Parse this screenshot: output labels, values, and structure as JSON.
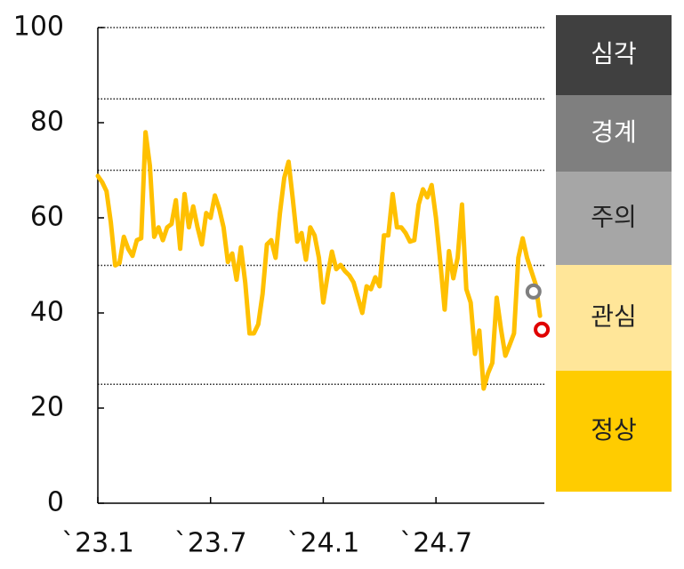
{
  "chart_data": {
    "type": "line",
    "xlim": [
      0,
      103
    ],
    "xticks": [
      {
        "value": 0,
        "label": "`23.1"
      },
      {
        "value": 26,
        "label": "`23.7"
      },
      {
        "value": 52,
        "label": "`24.1"
      },
      {
        "value": 78,
        "label": "`24.7"
      }
    ],
    "ylim": [
      0,
      100
    ],
    "yticks": [
      0,
      20,
      40,
      60,
      80,
      100
    ],
    "series": [
      {
        "color": "#ffc000",
        "values": [
          68.8,
          67.5,
          65.6,
          59,
          50,
          50.5,
          56,
          53.5,
          52,
          55.3,
          55.7,
          78,
          71,
          56,
          58,
          55.3,
          58,
          58.7,
          63.7,
          53.5,
          65,
          58,
          62.4,
          58,
          54.4,
          61,
          60,
          64.7,
          61.9,
          58,
          50.7,
          52.5,
          47,
          53.8,
          46.4,
          35.7,
          35.7,
          37.6,
          44,
          54.4,
          55.3,
          51.6,
          61,
          68.4,
          71.8,
          63.7,
          55,
          56.8,
          51.2,
          58,
          56.3,
          51.6,
          42.2,
          47.9,
          52.9,
          49.2,
          50.1,
          48.8,
          47.9,
          46.4,
          43.2,
          40,
          45.6,
          45,
          47.5,
          45.6,
          56.3,
          56.3,
          65,
          58,
          58,
          56.8,
          55,
          55.3,
          62.8,
          66,
          64.3,
          66.9,
          60,
          50.7,
          40.7,
          53,
          47.3,
          51.6,
          62.8,
          45,
          42.2,
          31.4,
          36.3,
          24.1,
          27.3,
          29.5,
          43.2,
          36.6,
          31,
          33.3,
          35.7,
          51.6,
          55.7,
          51.6,
          48.8,
          46,
          39.4
        ]
      }
    ],
    "markers": [
      {
        "x": 100.5,
        "value": 44.5,
        "color": "#7f7f7f"
      },
      {
        "x": 102.4,
        "value": 36.5,
        "color": "#e00000"
      }
    ],
    "bands": [
      {
        "label": "심각",
        "to": 100,
        "color": "#404040",
        "text_color": "#ffffff"
      },
      {
        "label": "경계",
        "to": 85,
        "color": "#7f7f7f",
        "text_color": "#ffffff"
      },
      {
        "label": "주의",
        "to": 70,
        "color": "#a6a6a6",
        "text_color": "#222222"
      },
      {
        "label": "관심",
        "to": 50,
        "color": "#ffe699",
        "text_color": "#222222"
      },
      {
        "label": "정상",
        "to": 25,
        "color": "#ffcc00",
        "text_color": "#222222"
      }
    ]
  }
}
